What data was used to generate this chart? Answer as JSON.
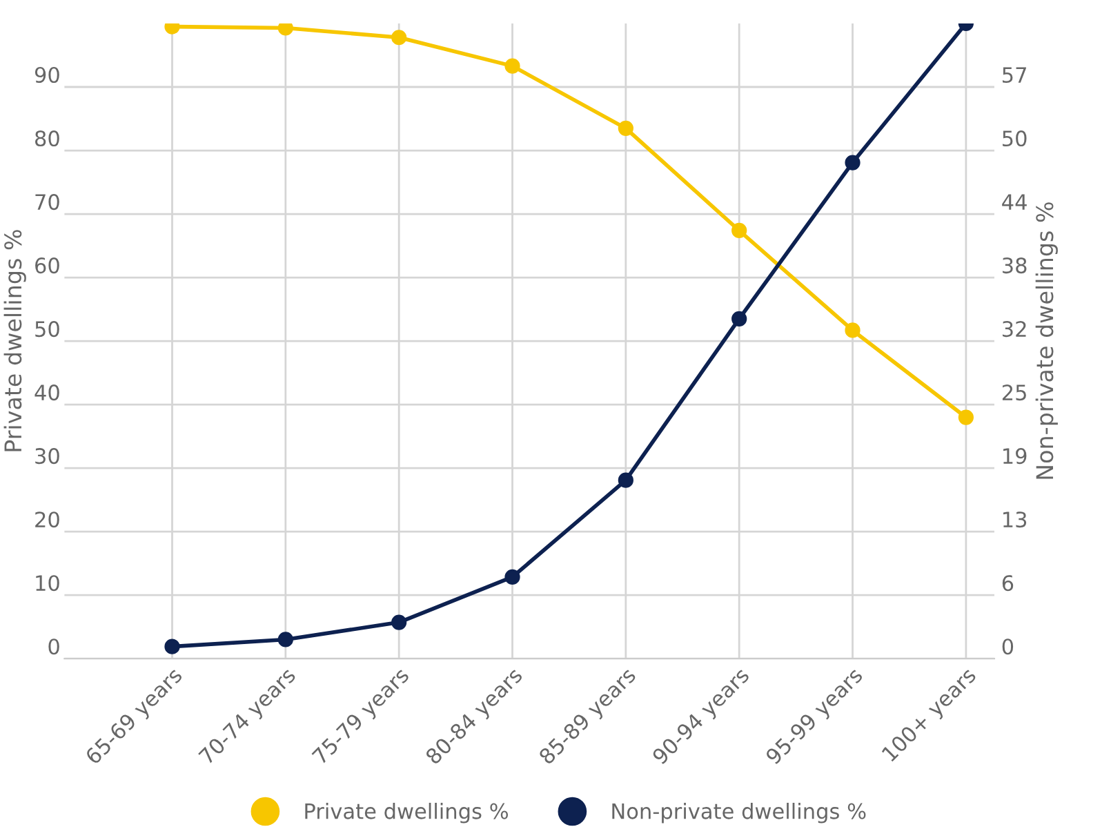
{
  "chart_data": {
    "type": "line",
    "ylabel": "Private dwellings %",
    "y2label": "Non-private dwellings %",
    "categories": [
      "65-69 years",
      "70-74 years",
      "75-79 years",
      "80-84 years",
      "85-89 years",
      "90-94 years",
      "95-99 years",
      "100+ years"
    ],
    "series": [
      {
        "name": "Private dwellings %",
        "color": "#f7c600",
        "values": [
          99.5,
          99.3,
          97.8,
          93.3,
          83.5,
          67.4,
          51.7,
          38.0
        ]
      },
      {
        "name": "Non-private dwellings %",
        "color": "#0d2150",
        "axis": "y2",
        "values": [
          1.2,
          1.9,
          3.6,
          8.1,
          17.7,
          33.7,
          49.2,
          63.0
        ]
      }
    ],
    "ylim": [
      0,
      100
    ],
    "yticks": [
      0,
      10,
      20,
      30,
      40,
      50,
      60,
      70,
      80,
      90
    ],
    "y2lim": [
      0,
      63
    ],
    "y2ticks": [
      0,
      {
        "value": 6.3,
        "label": "6"
      },
      {
        "value": 12.6,
        "label": "13"
      },
      {
        "value": 18.9,
        "label": "19"
      },
      {
        "value": 25.2,
        "label": "25"
      },
      {
        "value": 31.5,
        "label": "32"
      },
      {
        "value": 37.8,
        "label": "38"
      },
      {
        "value": 44.1,
        "label": "44"
      },
      {
        "value": 50.4,
        "label": "50"
      },
      {
        "value": 56.7,
        "label": "57"
      }
    ],
    "grid": true,
    "legend": "bottom",
    "marker": "circle",
    "line_style": "solid"
  }
}
